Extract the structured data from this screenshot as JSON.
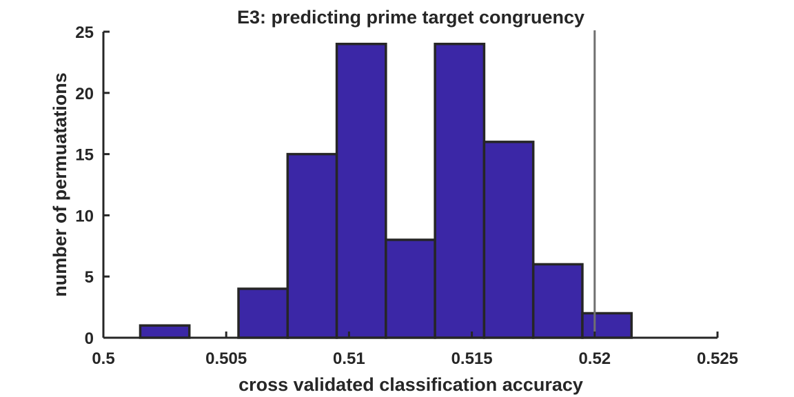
{
  "chart_data": {
    "type": "bar",
    "title": "E3: predicting prime target congruency",
    "xlabel": "cross validated classification accuracy",
    "ylabel": "number of permuatations",
    "xlim": [
      0.5,
      0.525
    ],
    "ylim": [
      0,
      25
    ],
    "xticks": [
      "0.5",
      "0.505",
      "0.51",
      "0.515",
      "0.52",
      "0.525"
    ],
    "yticks": [
      "0",
      "5",
      "10",
      "15",
      "20",
      "25"
    ],
    "bins": [
      {
        "start": 0.5015,
        "end": 0.5035,
        "count": 1
      },
      {
        "start": 0.5035,
        "end": 0.5055,
        "count": 0
      },
      {
        "start": 0.5055,
        "end": 0.5075,
        "count": 4
      },
      {
        "start": 0.5075,
        "end": 0.5095,
        "count": 15
      },
      {
        "start": 0.5095,
        "end": 0.5115,
        "count": 24
      },
      {
        "start": 0.5115,
        "end": 0.5135,
        "count": 8
      },
      {
        "start": 0.5135,
        "end": 0.5155,
        "count": 24
      },
      {
        "start": 0.5155,
        "end": 0.5175,
        "count": 16
      },
      {
        "start": 0.5175,
        "end": 0.5195,
        "count": 6
      },
      {
        "start": 0.5195,
        "end": 0.5215,
        "count": 2
      }
    ],
    "reference_line": 0.52,
    "bar_color": "#3b27a6",
    "bar_edge_color": "#262626",
    "reference_line_color": "#707070",
    "grid": false,
    "legend": "none"
  }
}
